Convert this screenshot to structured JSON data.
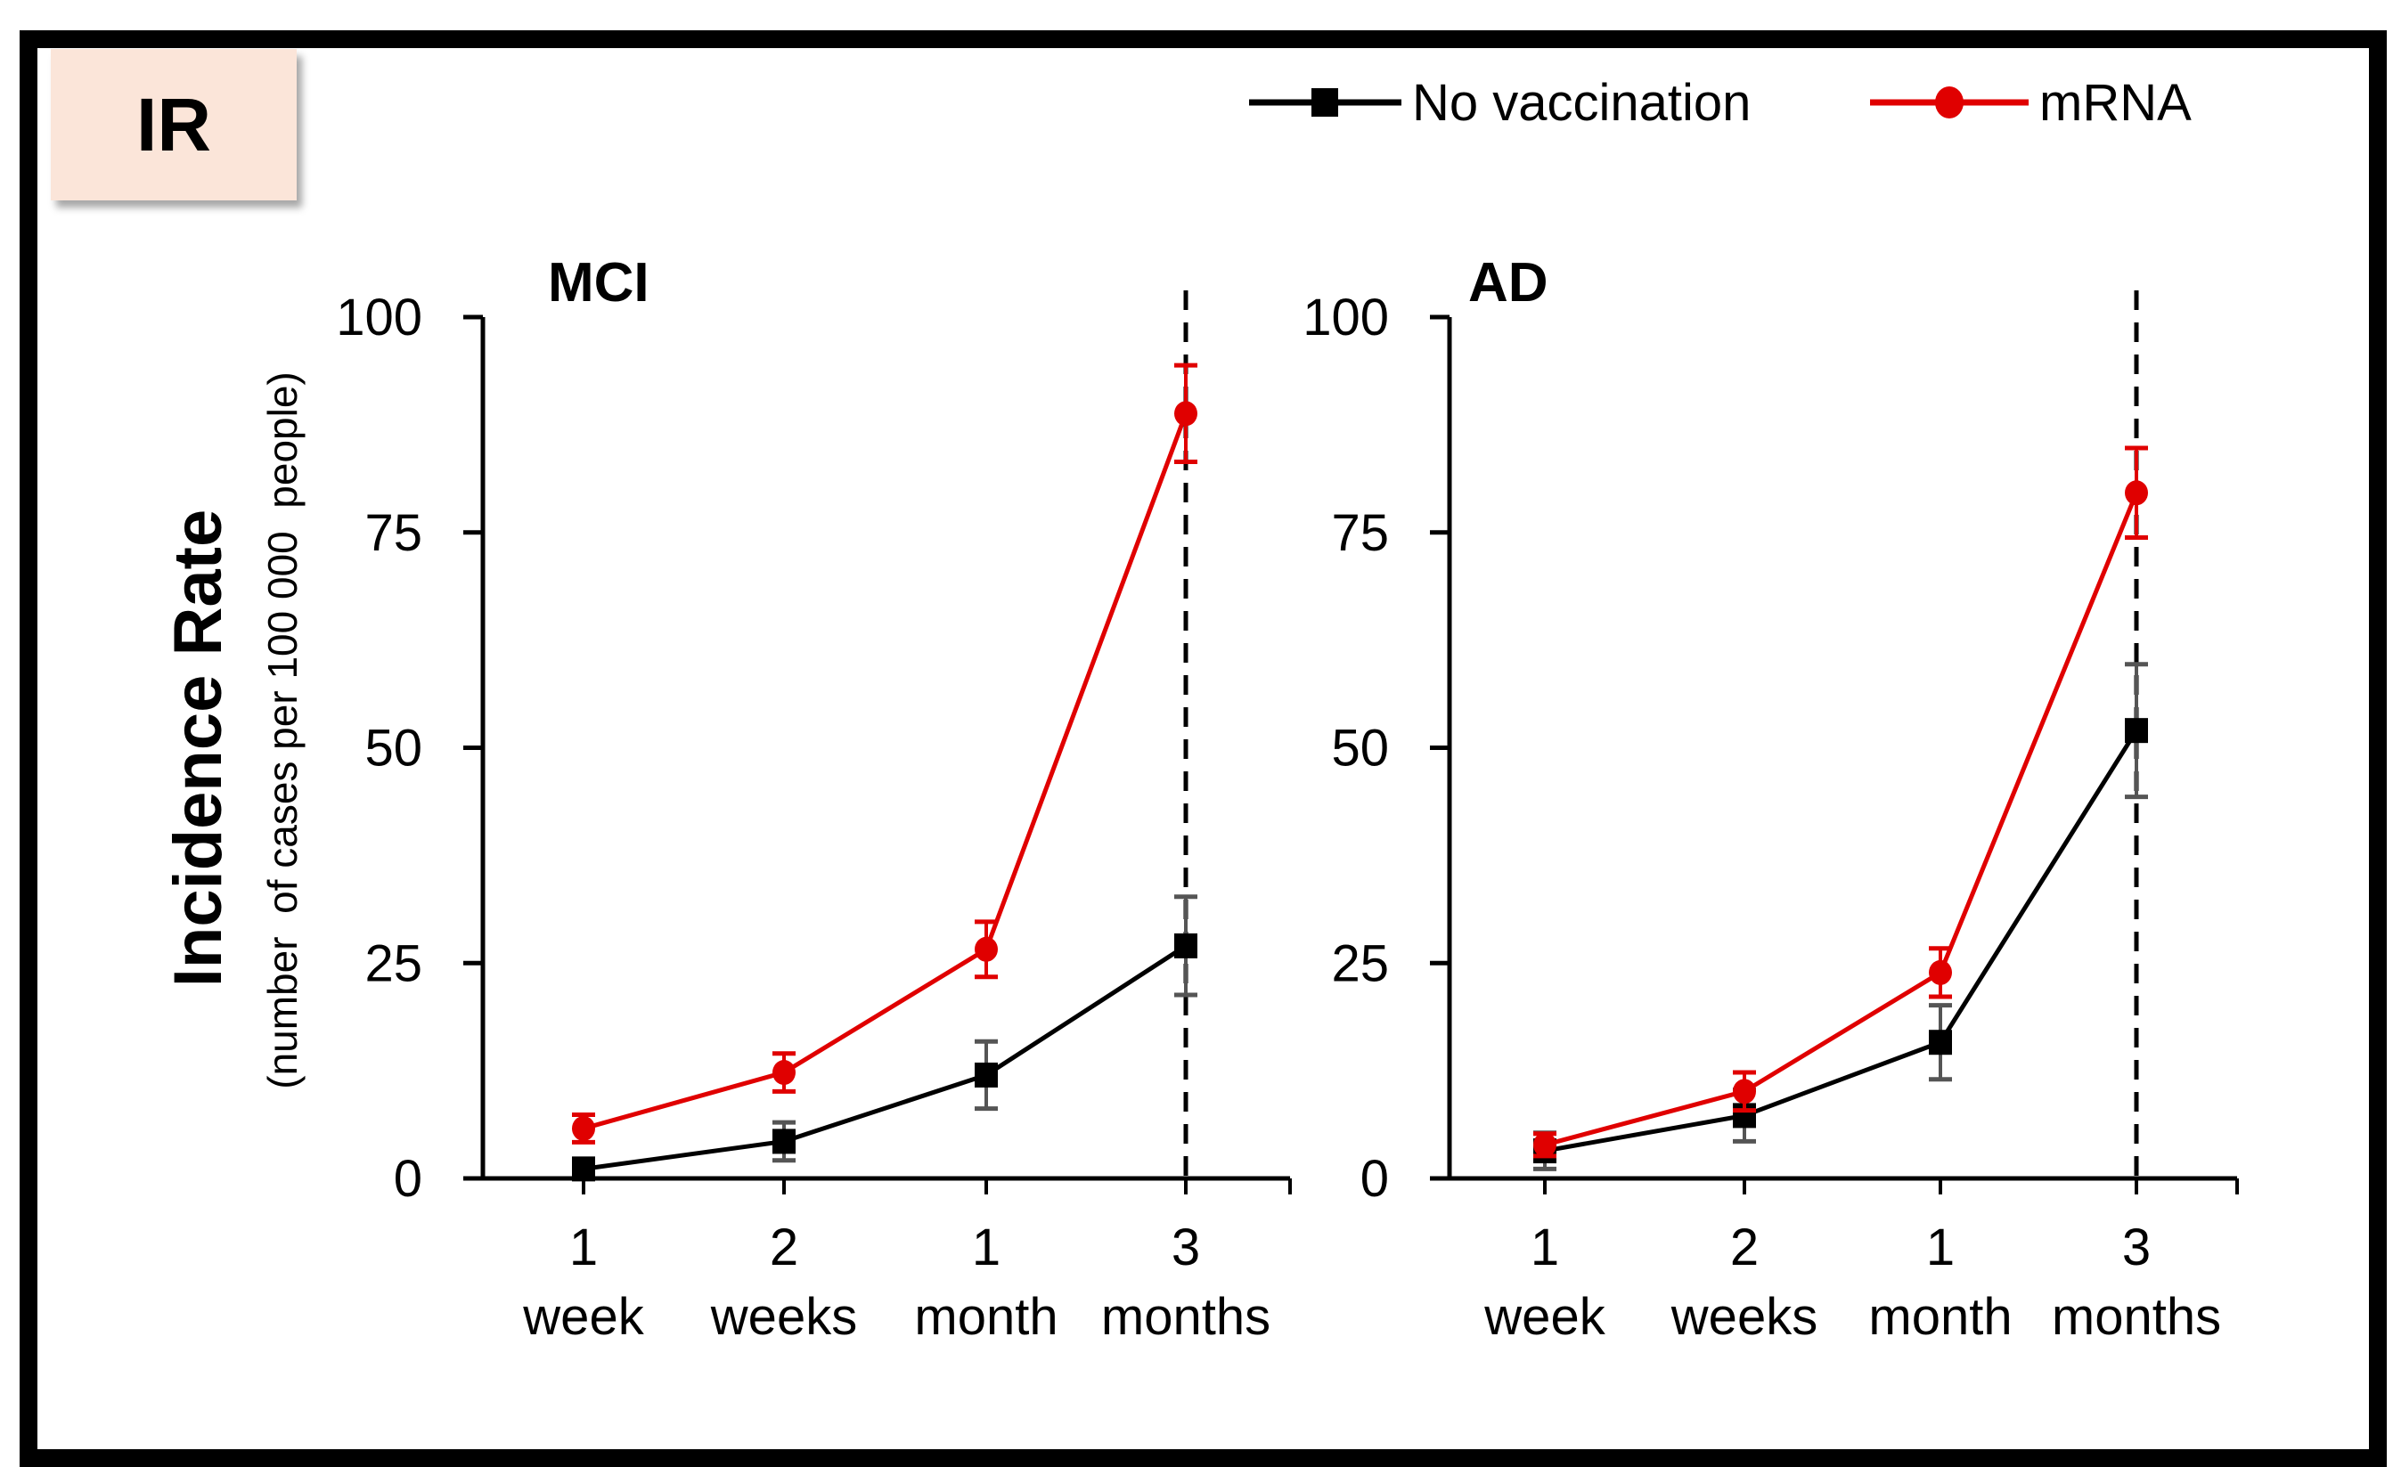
{
  "badge": {
    "label": "IR",
    "color": "#fbe5d9"
  },
  "legend": [
    {
      "label": "No vaccination",
      "color": "#000000",
      "marker": "square"
    },
    {
      "label": "mRNA",
      "color": "#e00000",
      "marker": "circle"
    }
  ],
  "y_axis_title": "Incidence Rate",
  "y_axis_subtitle": "(number  of cases per 100 000  people)",
  "chart_data": [
    {
      "type": "line",
      "title": "MCI",
      "categories": [
        [
          "1",
          "week"
        ],
        [
          "2",
          "weeks"
        ],
        [
          "1",
          "month"
        ],
        [
          "3",
          "months"
        ]
      ],
      "ylabel": "Incidence Rate (number of cases per 100 000 people)",
      "ylim": [
        0,
        100
      ],
      "yticks": [
        0,
        25,
        50,
        75,
        100
      ],
      "reference_line": {
        "category_index": 3,
        "style": "dashed"
      },
      "series": [
        {
          "name": "No vaccination",
          "color": "#000000",
          "marker": "square",
          "values": [
            1.1,
            4.3,
            12.0,
            27.0
          ],
          "errors": [
            1.0,
            2.2,
            3.9,
            5.7
          ]
        },
        {
          "name": "mRNA",
          "color": "#e00000",
          "marker": "circle",
          "values": [
            5.8,
            12.3,
            26.6,
            88.8
          ],
          "errors": [
            1.6,
            2.2,
            3.2,
            5.6
          ]
        }
      ]
    },
    {
      "type": "line",
      "title": "AD",
      "categories": [
        [
          "1",
          "week"
        ],
        [
          "2",
          "weeks"
        ],
        [
          "1",
          "month"
        ],
        [
          "3",
          "months"
        ]
      ],
      "ylabel": "Incidence Rate (number of cases per 100 000 people)",
      "ylim": [
        0,
        100
      ],
      "yticks": [
        0,
        25,
        50,
        75,
        100
      ],
      "reference_line": {
        "category_index": 3,
        "style": "dashed"
      },
      "series": [
        {
          "name": "No vaccination",
          "color": "#000000",
          "marker": "square",
          "values": [
            3.2,
            7.3,
            15.8,
            52.0
          ],
          "errors": [
            2.1,
            3.0,
            4.3,
            7.7
          ]
        },
        {
          "name": "mRNA",
          "color": "#e00000",
          "marker": "circle",
          "values": [
            3.9,
            10.1,
            23.9,
            79.6
          ],
          "errors": [
            1.3,
            2.2,
            2.8,
            5.2
          ]
        }
      ]
    }
  ]
}
